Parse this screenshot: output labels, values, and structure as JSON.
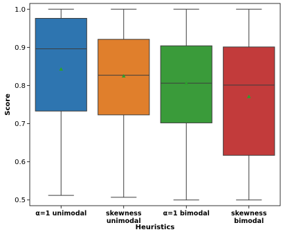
{
  "chart_data": {
    "type": "box",
    "xlabel": "Heuristics",
    "ylabel": "Score",
    "ylim": [
      0.485,
      1.015
    ],
    "yticks": [
      "0.5",
      "0.6",
      "0.7",
      "0.8",
      "0.9",
      "1.0"
    ],
    "ytick_values": [
      0.5,
      0.6,
      0.7,
      0.8,
      0.9,
      1.0
    ],
    "grid": false,
    "legend": "none",
    "mean_marker_color": "#2ca02c",
    "categories": [
      {
        "label_lines": [
          "α=1 unimodal"
        ],
        "color": "#2e75b0",
        "min": 0.512,
        "q1": 0.733,
        "median": 0.896,
        "q3": 0.976,
        "max": 1.0,
        "mean": 0.843
      },
      {
        "label_lines": [
          "skewness",
          "unimodal"
        ],
        "color": "#e07f2c",
        "min": 0.507,
        "q1": 0.723,
        "median": 0.827,
        "q3": 0.921,
        "max": 1.0,
        "mean": 0.825
      },
      {
        "label_lines": [
          "α=1 bimodal"
        ],
        "color": "#3a9b3a",
        "min": 0.5,
        "q1": 0.702,
        "median": 0.806,
        "q3": 0.904,
        "max": 1.0,
        "mean": 0.806
      },
      {
        "label_lines": [
          "skewness",
          "bimodal"
        ],
        "color": "#c23b3b",
        "min": 0.5,
        "q1": 0.617,
        "median": 0.801,
        "q3": 0.901,
        "max": 1.0,
        "mean": 0.771
      }
    ]
  }
}
